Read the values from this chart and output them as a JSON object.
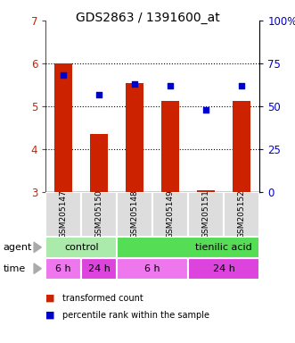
{
  "title": "GDS2863 / 1391600_at",
  "samples": [
    "GSM205147",
    "GSM205150",
    "GSM205148",
    "GSM205149",
    "GSM205151",
    "GSM205152"
  ],
  "bar_values": [
    6.0,
    4.35,
    5.55,
    5.12,
    3.05,
    5.12
  ],
  "percentile_values": [
    68,
    57,
    63,
    62,
    48,
    62
  ],
  "bar_color": "#cc2200",
  "percentile_color": "#0000cc",
  "ylim_left": [
    3,
    7
  ],
  "ylim_right": [
    0,
    100
  ],
  "yticks_left": [
    3,
    4,
    5,
    6,
    7
  ],
  "yticks_right": [
    0,
    25,
    50,
    75,
    100
  ],
  "ytick_labels_right": [
    "0",
    "25",
    "50",
    "75",
    "100%"
  ],
  "agent_labels": [
    "control",
    "tienilic acid"
  ],
  "time_labels": [
    "6 h",
    "24 h",
    "6 h",
    "24 h"
  ],
  "agent_color_control": "#aaeaaa",
  "agent_color_tienilic": "#55dd55",
  "time_color_odd": "#ee77ee",
  "time_color_even": "#dd44dd",
  "sample_box_color": "#dddddd",
  "legend_bar_label": "transformed count",
  "legend_pct_label": "percentile rank within the sample",
  "background_color": "#ffffff",
  "plot_bg_color": "#ffffff"
}
